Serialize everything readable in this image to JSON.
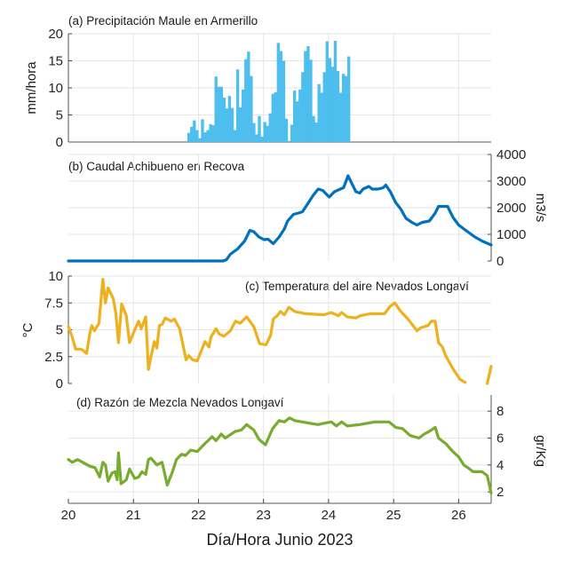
{
  "xlabel": "Día/Hora Junio 2023",
  "x_ticks": [
    "20",
    "21",
    "22",
    "23",
    "24",
    "25",
    "26"
  ],
  "chart_data": [
    {
      "type": "bar",
      "title": "(a) Precipitación Maule en Armerillo",
      "ylabel": "mm/hora",
      "ylim": [
        0,
        20
      ],
      "xlim": [
        20,
        26.5
      ],
      "y_ticks": [
        "0",
        "5",
        "10",
        "15",
        "20"
      ],
      "y_axis_side": "left",
      "grid": true,
      "color": "#4DBEEE",
      "bar_start": 21.83,
      "bar_step_hours": 1,
      "values": [
        1.7,
        2.8,
        4.0,
        2.2,
        0.7,
        4.2,
        1.8,
        2.2,
        3.3,
        3.1,
        12.1,
        10.2,
        10.2,
        8.2,
        6.2,
        8.5,
        6.3,
        2.2,
        13.4,
        6.4,
        9.7,
        15.3,
        16.7,
        12.2,
        3.5,
        1.4,
        4.8,
        1.0,
        3.7,
        3.0,
        5.3,
        8.9,
        9.2,
        18.3,
        16.8,
        15.0,
        4.3,
        0.2,
        3.2,
        9.5,
        7.5,
        9.7,
        12.9,
        16.8,
        17.7,
        15.2,
        4.8,
        3.6,
        10.7,
        9.1,
        12.9,
        18.6,
        15.5,
        13.9,
        18.7,
        13.1,
        9.1,
        12.6,
        12.2,
        15.8
      ]
    },
    {
      "type": "line",
      "title": "(b) Caudal Achibueno en Recova",
      "ylabel": "m3/s",
      "ylim": [
        0,
        4000
      ],
      "xlim": [
        20,
        26.5
      ],
      "y_ticks": [
        "0",
        "1000",
        "2000",
        "3000",
        "4000"
      ],
      "y_axis_side": "right",
      "grid": true,
      "color": "#0072BD",
      "x": [
        20,
        22.38,
        22.43,
        22.49,
        22.6,
        22.71,
        22.79,
        22.85,
        22.93,
        23.01,
        23.07,
        23.15,
        23.24,
        23.32,
        23.37,
        23.46,
        23.54,
        23.6,
        23.68,
        23.76,
        23.84,
        23.91,
        24.01,
        24.09,
        24.18,
        24.23,
        24.3,
        24.36,
        24.42,
        24.48,
        24.53,
        24.62,
        24.67,
        24.76,
        24.84,
        24.88,
        24.95,
        25.03,
        25.11,
        25.19,
        25.28,
        25.36,
        25.44,
        25.55,
        25.64,
        25.69,
        25.83,
        25.91,
        26.0,
        26.11,
        26.25,
        26.36,
        26.5
      ],
      "y": [
        0,
        0,
        50,
        250,
        450,
        750,
        1150,
        1100,
        900,
        800,
        820,
        650,
        900,
        1200,
        1500,
        1750,
        1800,
        1850,
        2150,
        2450,
        2700,
        2650,
        2400,
        2600,
        2700,
        2750,
        3200,
        2900,
        2600,
        2550,
        2700,
        2800,
        2700,
        2700,
        2750,
        2850,
        2600,
        2200,
        1950,
        1600,
        1450,
        1350,
        1450,
        1500,
        1800,
        2050,
        2050,
        1650,
        1350,
        1150,
        900,
        750,
        600
      ]
    },
    {
      "type": "line",
      "title": "(c) Temperatura del aire Nevados Longaví",
      "ylabel": "°C",
      "ylim": [
        0,
        10
      ],
      "xlim": [
        20,
        26.5
      ],
      "y_ticks": [
        "0",
        "2.5",
        "5",
        "7.5",
        "10"
      ],
      "y_axis_side": "left",
      "grid": true,
      "color": "#EDB120",
      "x": [
        20,
        20.06,
        20.11,
        20.19,
        20.22,
        20.28,
        20.33,
        20.36,
        20.4,
        20.47,
        20.53,
        20.57,
        20.61,
        20.69,
        20.73,
        20.77,
        20.82,
        20.89,
        20.94,
        21.02,
        21.08,
        21.12,
        21.19,
        21.23,
        21.27,
        21.32,
        21.36,
        21.4,
        21.44,
        21.49,
        21.58,
        21.63,
        21.71,
        21.81,
        21.85,
        21.91,
        21.98,
        22.1,
        22.16,
        22.19,
        22.27,
        22.32,
        22.39,
        22.49,
        22.57,
        22.64,
        22.74,
        22.85,
        22.94,
        23.04,
        23.11,
        23.15,
        23.21,
        23.26,
        23.32,
        23.39,
        23.48,
        23.65,
        23.93,
        24.04,
        24.15,
        24.2,
        24.29,
        24.42,
        24.48,
        24.64,
        24.86,
        24.95,
        25.02,
        25.11,
        25.22,
        25.36,
        25.42,
        25.53,
        25.58,
        25.64,
        25.69,
        25.75,
        25.8,
        25.91,
        26.02,
        26.1,
        26.44,
        26.5
      ],
      "y": [
        5.3,
        4.3,
        3.2,
        3.2,
        3.1,
        2.8,
        4.7,
        5.4,
        4.9,
        5.6,
        9.7,
        7.5,
        8.9,
        7.9,
        6.5,
        3.8,
        7.4,
        6.3,
        3.8,
        5.0,
        5.8,
        5.1,
        6.2,
        1.3,
        2.5,
        3.9,
        3.3,
        5.4,
        5.5,
        6.1,
        5.8,
        6.0,
        5.1,
        2.2,
        2.6,
        2.2,
        2.1,
        3.9,
        3.4,
        4.3,
        5.1,
        4.6,
        4.4,
        4.9,
        5.8,
        5.6,
        6.2,
        5.3,
        3.7,
        3.6,
        4.5,
        6.0,
        6.3,
        6.7,
        6.4,
        7.1,
        6.7,
        6.5,
        6.4,
        6.6,
        6.3,
        6.6,
        6.2,
        6.1,
        6.3,
        6.5,
        6.5,
        7.2,
        7.5,
        6.7,
        6.0,
        4.9,
        5.2,
        5.4,
        5.8,
        5.8,
        3.8,
        3.4,
        2.6,
        1.4,
        0.4,
        0.1,
        null,
        1.6
      ],
      "gap_end_point": [
        26.44,
        0.0
      ]
    },
    {
      "type": "line",
      "title": "(d) Razón de Mezcla Nevados Longaví",
      "ylabel": "gr/Kg",
      "ylim": [
        1.15,
        9.2
      ],
      "xlim": [
        20,
        26.5
      ],
      "y_ticks": [
        "2",
        "4",
        "6",
        "8"
      ],
      "y_axis_side": "right",
      "grid": true,
      "color": "#77AC30",
      "x": [
        20,
        20.06,
        20.14,
        20.22,
        20.33,
        20.41,
        20.48,
        20.53,
        20.57,
        20.61,
        20.67,
        20.72,
        20.75,
        20.77,
        20.81,
        20.89,
        20.94,
        21.02,
        21.08,
        21.13,
        21.19,
        21.23,
        21.27,
        21.36,
        21.4,
        21.44,
        21.52,
        21.6,
        21.66,
        21.74,
        21.8,
        21.88,
        21.98,
        22.1,
        22.21,
        22.27,
        22.35,
        22.41,
        22.57,
        22.66,
        22.74,
        22.85,
        22.93,
        23.03,
        23.14,
        23.24,
        23.32,
        23.4,
        23.48,
        23.71,
        23.84,
        23.93,
        24.04,
        24.12,
        24.2,
        24.29,
        24.48,
        24.71,
        24.93,
        25.03,
        25.14,
        25.25,
        25.39,
        25.47,
        25.55,
        25.64,
        25.69,
        25.8,
        25.91,
        26.0,
        26.08,
        26.14,
        26.22,
        26.36,
        26.44,
        26.5
      ],
      "y": [
        4.4,
        4.2,
        4.4,
        4.2,
        3.9,
        3.8,
        3.1,
        4.2,
        4.0,
        2.8,
        3.4,
        3.5,
        2.9,
        4.9,
        2.6,
        2.9,
        3.7,
        3.0,
        3.1,
        3.5,
        3.3,
        4.4,
        4.5,
        4.0,
        4.1,
        4.2,
        2.5,
        3.5,
        4.4,
        4.8,
        4.7,
        5.1,
        5.0,
        5.6,
        6.1,
        5.8,
        6.3,
        6.0,
        6.5,
        6.6,
        7.0,
        6.6,
        5.9,
        5.5,
        6.7,
        7.3,
        7.2,
        7.5,
        7.3,
        7.1,
        7.0,
        7.1,
        7.2,
        6.9,
        7.2,
        6.9,
        7.0,
        7.2,
        7.2,
        6.8,
        6.7,
        6.2,
        6.0,
        6.3,
        6.5,
        6.8,
        6.0,
        5.6,
        5.0,
        4.6,
        4.0,
        3.8,
        3.5,
        3.5,
        3.2,
        1.9
      ]
    }
  ]
}
